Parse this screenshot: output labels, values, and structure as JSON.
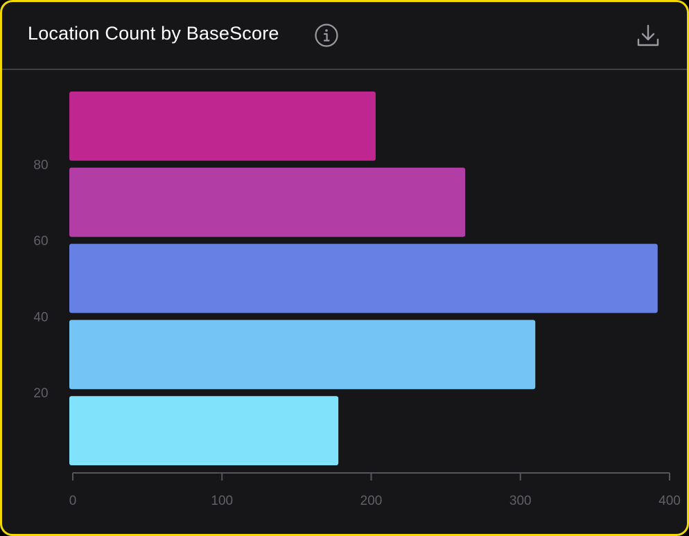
{
  "header": {
    "title": "Location Count by BaseScore",
    "info_icon": "info-icon",
    "download_icon": "download-icon"
  },
  "chart_data": {
    "type": "bar",
    "orientation": "horizontal",
    "title": "Location Count by BaseScore",
    "xlabel": "",
    "ylabel": "",
    "xlim": [
      0,
      400
    ],
    "ylim": [
      0,
      100
    ],
    "x_ticks": [
      0,
      100,
      200,
      300,
      400
    ],
    "y_ticks": [
      20,
      40,
      60,
      80
    ],
    "grid": false,
    "legend": "none",
    "bars": [
      {
        "y_from": 0,
        "y_to": 20,
        "value": 178,
        "color": "#80e3fb"
      },
      {
        "y_from": 20,
        "y_to": 40,
        "value": 310,
        "color": "#74c4f5"
      },
      {
        "y_from": 40,
        "y_to": 60,
        "value": 392,
        "color": "#6680e4"
      },
      {
        "y_from": 60,
        "y_to": 80,
        "value": 263,
        "color": "#b23ea5"
      },
      {
        "y_from": 80,
        "y_to": 100,
        "value": 203,
        "color": "#c0268f"
      }
    ]
  }
}
